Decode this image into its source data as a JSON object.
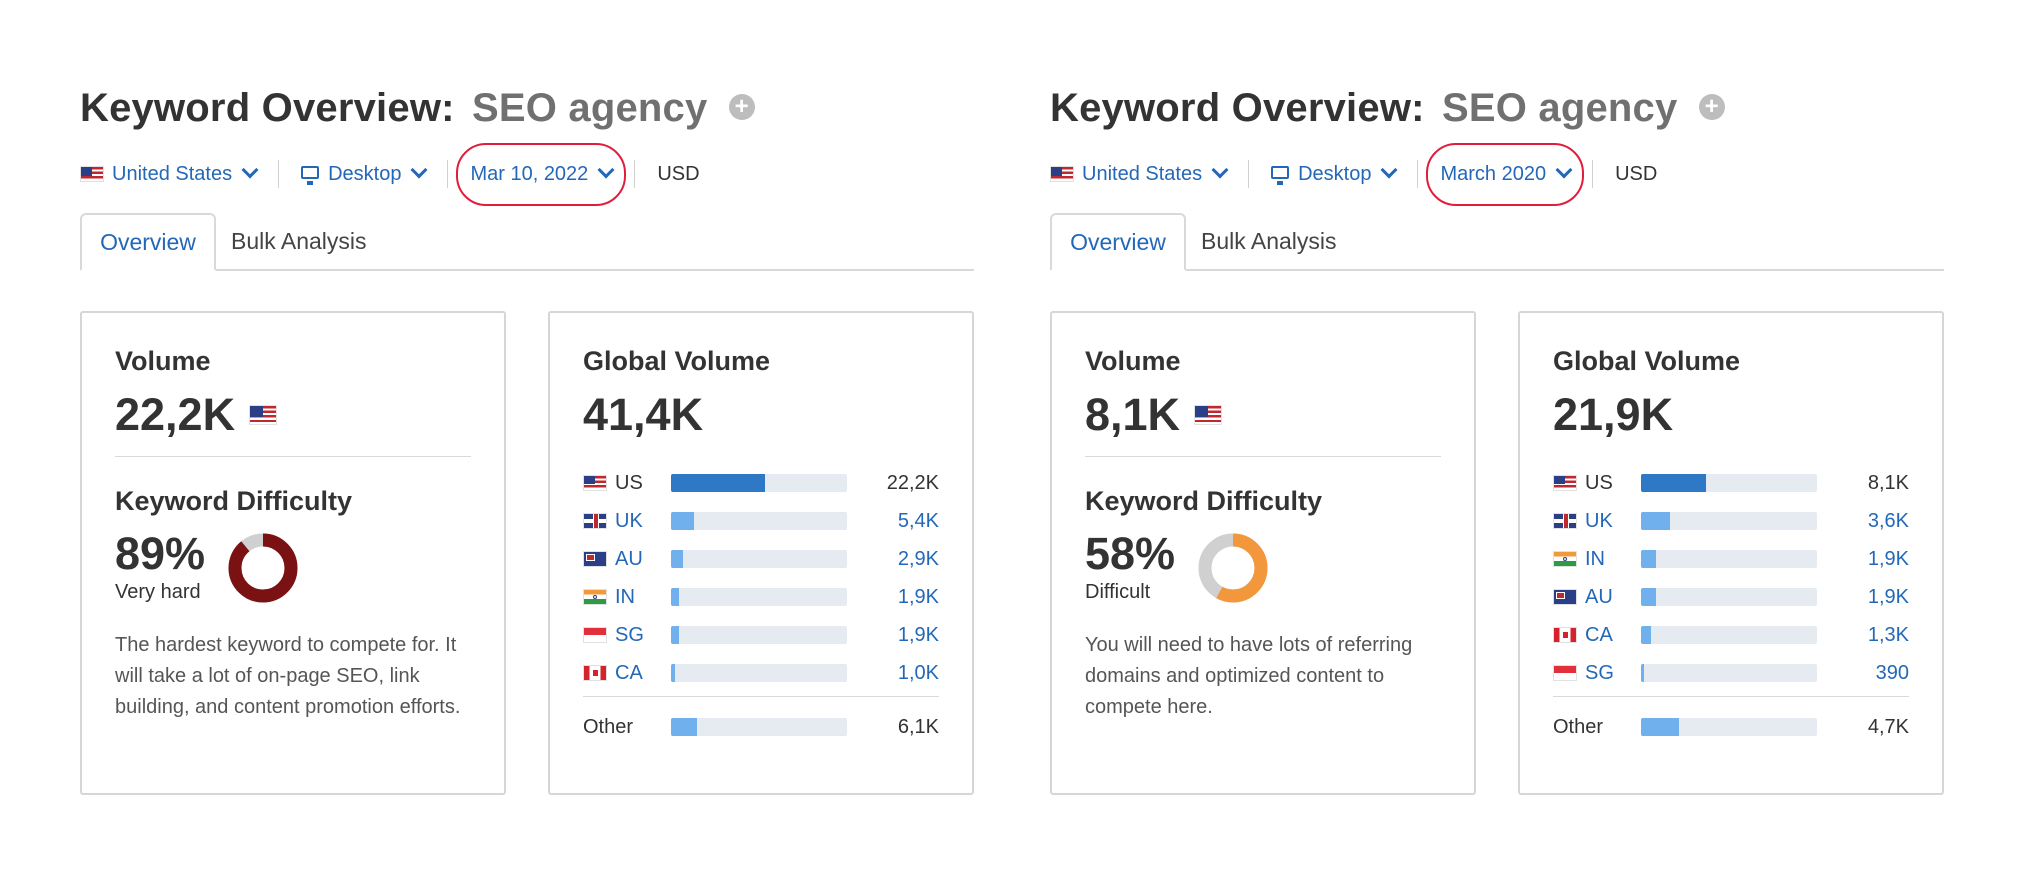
{
  "panels": [
    {
      "header": {
        "title_prefix": "Keyword Overview:",
        "keyword": "SEO agency",
        "add_icon": "plus-circle-icon"
      },
      "toolbar": {
        "country": "United States",
        "device": "Desktop",
        "date": "Mar 10, 2022",
        "currency": "USD"
      },
      "tabs": {
        "overview": "Overview",
        "bulk": "Bulk Analysis"
      },
      "volume": {
        "title": "Volume",
        "value": "22,2K"
      },
      "difficulty": {
        "title": "Keyword Difficulty",
        "percent_label": "89%",
        "percent": 89,
        "level": "Very hard",
        "color": "#7a1113",
        "description": "The hardest keyword to compete for. It will take a lot of on-page SEO, link building, and content promotion efforts."
      },
      "global": {
        "title": "Global Volume",
        "value": "41,4K",
        "rows": [
          {
            "country": "US",
            "flag": "f-us",
            "value": "22,2K",
            "share": 0.535,
            "dark": true
          },
          {
            "country": "UK",
            "flag": "f-uk",
            "value": "5,4K",
            "share": 0.13
          },
          {
            "country": "AU",
            "flag": "f-au",
            "value": "2,9K",
            "share": 0.07
          },
          {
            "country": "IN",
            "flag": "f-in",
            "value": "1,9K",
            "share": 0.046
          },
          {
            "country": "SG",
            "flag": "f-sg",
            "value": "1,9K",
            "share": 0.046
          },
          {
            "country": "CA",
            "flag": "f-ca",
            "value": "1,0K",
            "share": 0.024
          }
        ],
        "other": {
          "label": "Other",
          "value": "6,1K",
          "share": 0.147
        }
      }
    },
    {
      "header": {
        "title_prefix": "Keyword Overview:",
        "keyword": "SEO agency",
        "add_icon": "plus-circle-icon"
      },
      "toolbar": {
        "country": "United States",
        "device": "Desktop",
        "date": "March 2020",
        "currency": "USD"
      },
      "tabs": {
        "overview": "Overview",
        "bulk": "Bulk Analysis"
      },
      "volume": {
        "title": "Volume",
        "value": "8,1K"
      },
      "difficulty": {
        "title": "Keyword Difficulty",
        "percent_label": "58%",
        "percent": 58,
        "level": "Difficult",
        "color": "#f2973b",
        "description": "You will need to have lots of referring domains and optimized content to compete here."
      },
      "global": {
        "title": "Global Volume",
        "value": "21,9K",
        "rows": [
          {
            "country": "US",
            "flag": "f-us",
            "value": "8,1K",
            "share": 0.37,
            "dark": true
          },
          {
            "country": "UK",
            "flag": "f-uk",
            "value": "3,6K",
            "share": 0.164
          },
          {
            "country": "IN",
            "flag": "f-in",
            "value": "1,9K",
            "share": 0.087
          },
          {
            "country": "AU",
            "flag": "f-au",
            "value": "1,9K",
            "share": 0.087
          },
          {
            "country": "CA",
            "flag": "f-ca",
            "value": "1,3K",
            "share": 0.059
          },
          {
            "country": "SG",
            "flag": "f-sg",
            "value": "390",
            "share": 0.018
          }
        ],
        "other": {
          "label": "Other",
          "value": "4,7K",
          "share": 0.215
        }
      }
    }
  ]
}
